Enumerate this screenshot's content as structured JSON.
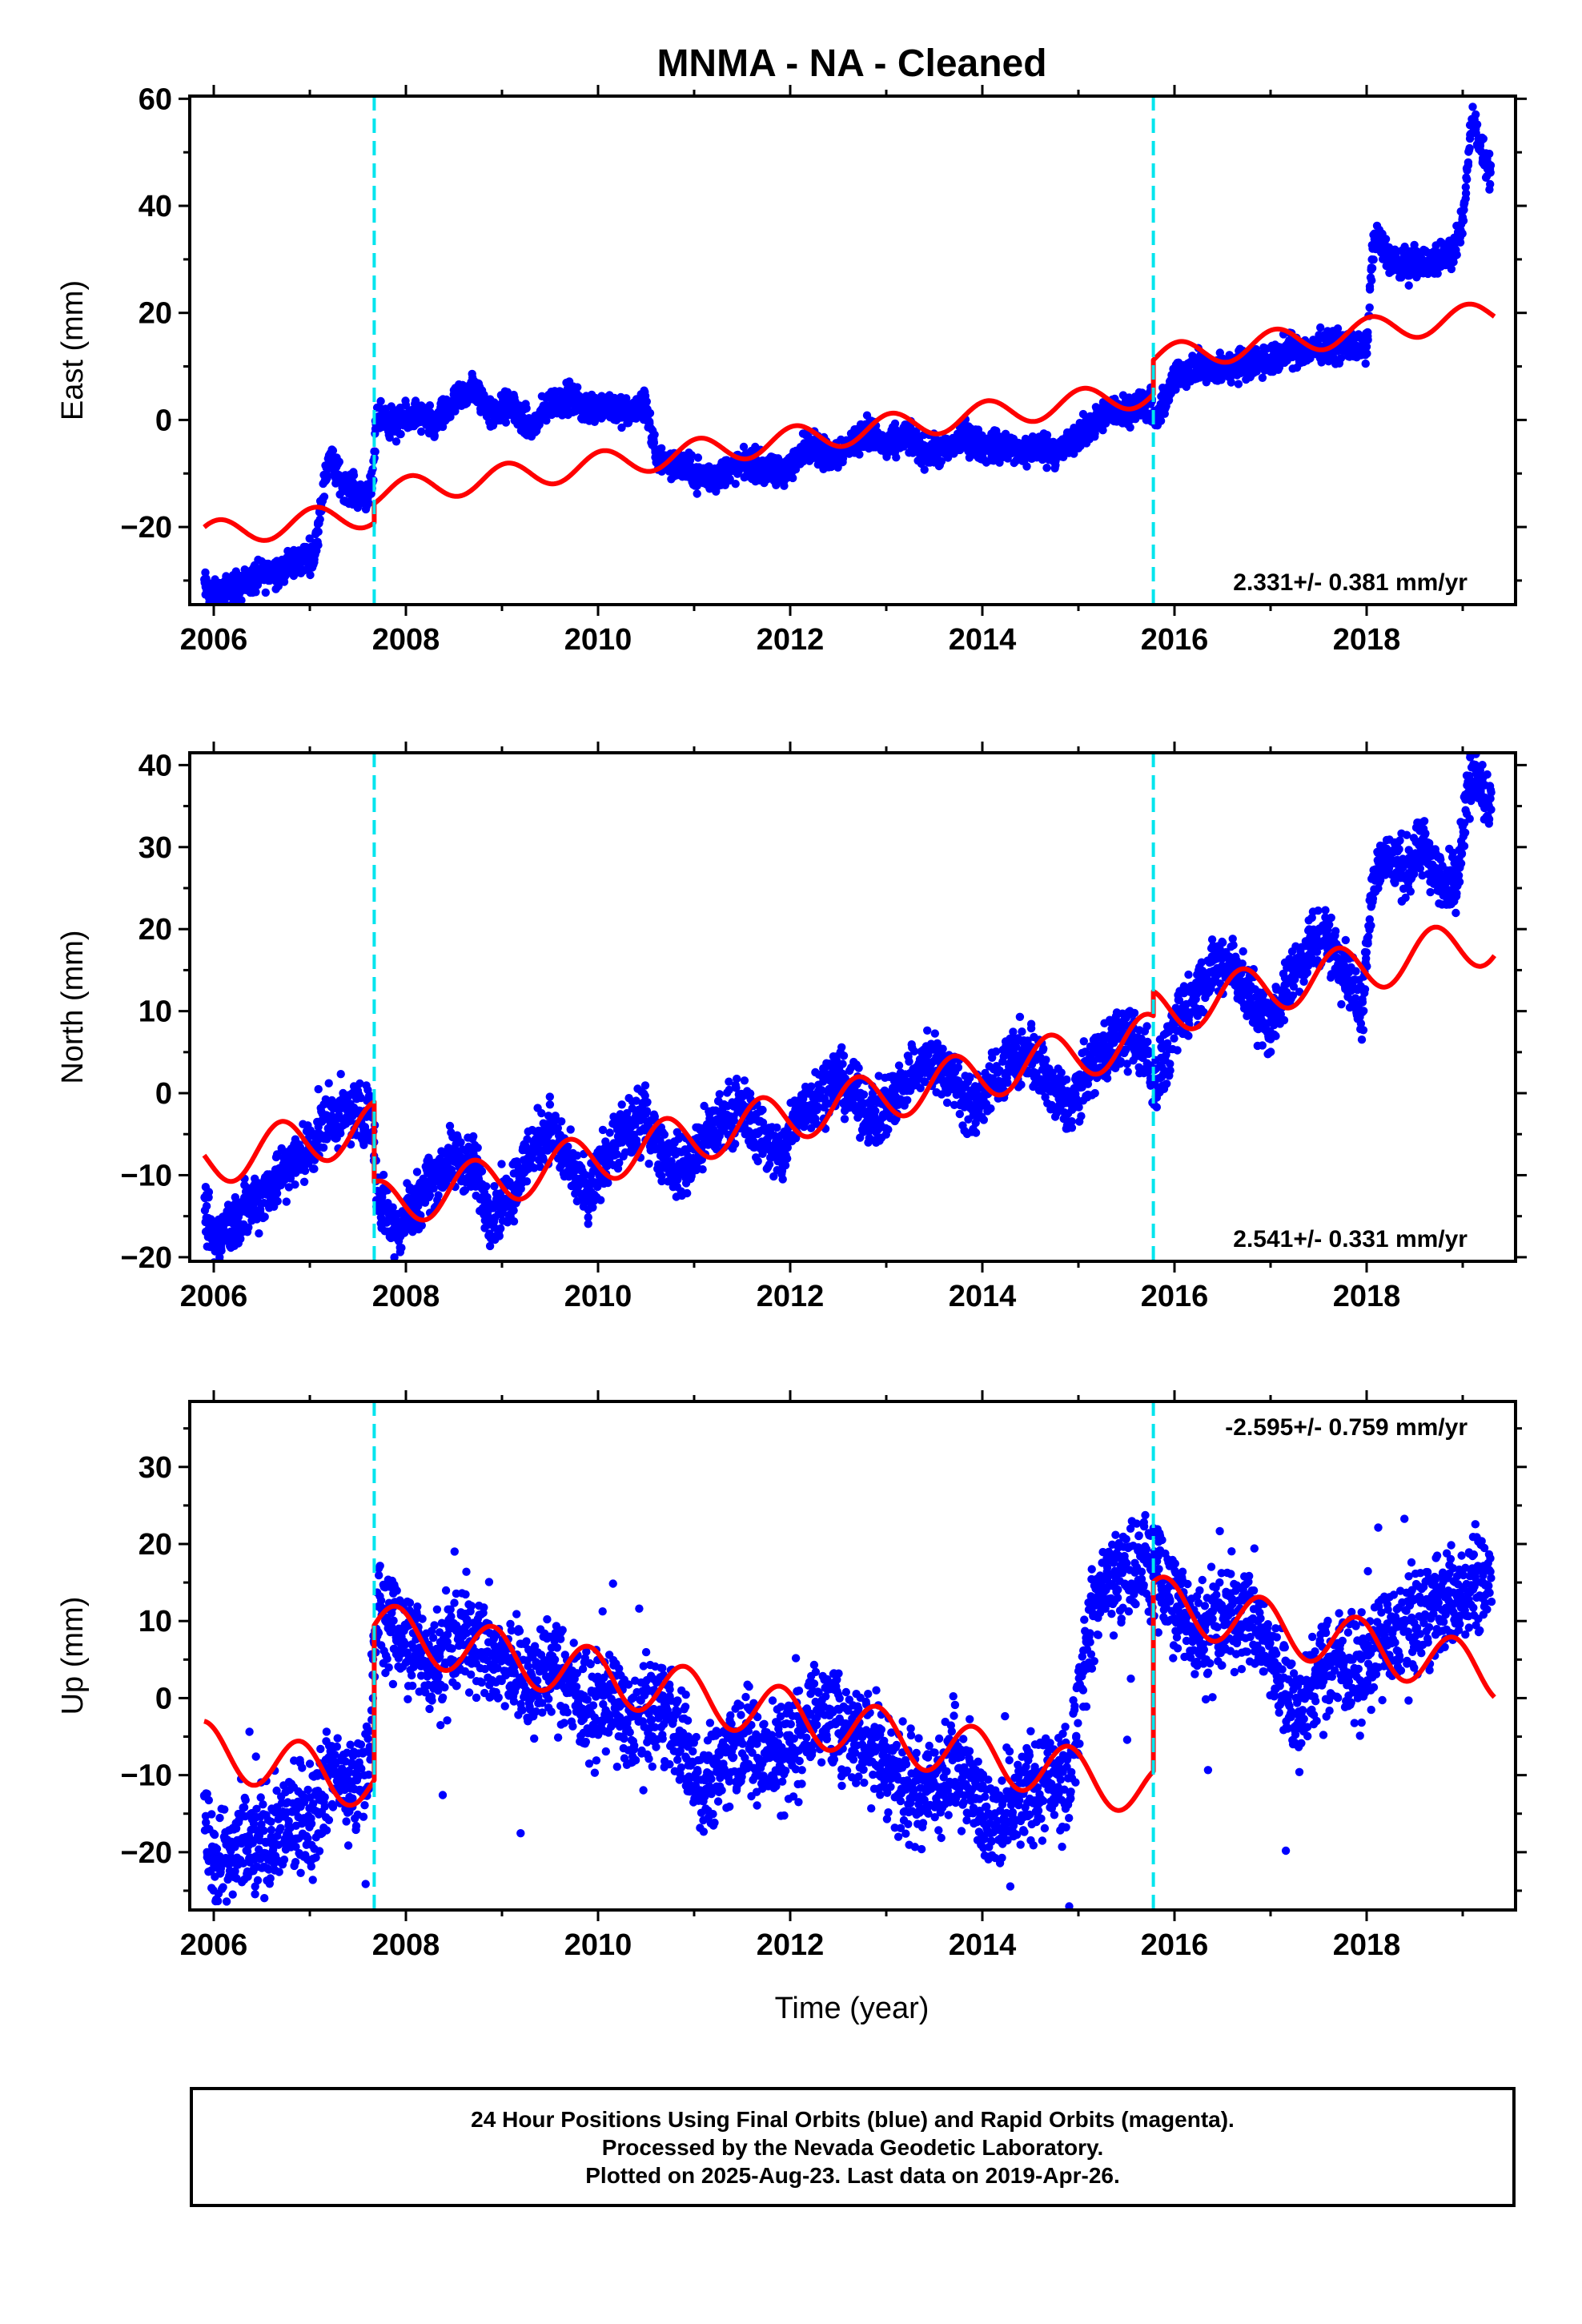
{
  "title": "MNMA  - NA - Cleaned",
  "xlabel": "Time (year)",
  "caption": [
    "24 Hour Positions Using Final Orbits (blue) and Rapid Orbits (magenta).",
    "Processed by the Nevada Geodetic Laboratory.",
    "Plotted on 2025-Aug-23. Last data on 2019-Apr-26."
  ],
  "colors": {
    "data": "#0000ff",
    "model": "#ff0000",
    "breaks": "#00e5ee",
    "axis": "#000000"
  },
  "chart_data": [
    {
      "type": "scatter",
      "ylabel": "East (mm)",
      "annotation": "2.331+/- 0.381 mm/yr",
      "annotation_position": "bottom-right",
      "xlim": [
        2005.75,
        2019.55
      ],
      "ylim": [
        -34.5,
        60.5
      ],
      "xticks": [
        2006,
        2008,
        2010,
        2012,
        2014,
        2016,
        2018
      ],
      "yticks": [
        -20,
        0,
        20,
        40,
        60
      ],
      "breaks": [
        2007.67,
        2015.78
      ],
      "data_trace": [
        [
          2005.9,
          -31
        ],
        [
          2006.0,
          -33
        ],
        [
          2007.05,
          -25
        ],
        [
          2007.12,
          -15
        ],
        [
          2007.2,
          -7
        ],
        [
          2007.35,
          -12
        ],
        [
          2007.55,
          -14
        ],
        [
          2007.65,
          -13
        ],
        [
          2007.7,
          1
        ],
        [
          2007.9,
          -1
        ],
        [
          2008.1,
          1
        ],
        [
          2008.3,
          -1
        ],
        [
          2008.5,
          3
        ],
        [
          2008.7,
          6
        ],
        [
          2008.9,
          1
        ],
        [
          2009.1,
          3
        ],
        [
          2009.3,
          -2
        ],
        [
          2009.5,
          3
        ],
        [
          2009.7,
          4
        ],
        [
          2009.9,
          2
        ],
        [
          2010.1,
          3
        ],
        [
          2010.3,
          1
        ],
        [
          2010.5,
          3
        ],
        [
          2010.6,
          -7
        ],
        [
          2010.8,
          -8
        ],
        [
          2011.0,
          -10
        ],
        [
          2011.2,
          -11
        ],
        [
          2011.4,
          -9
        ],
        [
          2011.6,
          -8
        ],
        [
          2011.8,
          -10
        ],
        [
          2012.0,
          -9
        ],
        [
          2012.2,
          -4
        ],
        [
          2012.4,
          -7
        ],
        [
          2012.6,
          -5
        ],
        [
          2012.8,
          -2
        ],
        [
          2013.0,
          -5
        ],
        [
          2013.2,
          -3
        ],
        [
          2013.4,
          -6
        ],
        [
          2013.6,
          -6
        ],
        [
          2013.8,
          -3
        ],
        [
          2014.0,
          -5
        ],
        [
          2014.2,
          -5
        ],
        [
          2014.4,
          -6
        ],
        [
          2014.6,
          -5
        ],
        [
          2014.8,
          -6
        ],
        [
          2015.0,
          -3
        ],
        [
          2015.2,
          0
        ],
        [
          2015.4,
          2
        ],
        [
          2015.6,
          2
        ],
        [
          2015.75,
          3
        ],
        [
          2015.8,
          -1
        ],
        [
          2016.0,
          8
        ],
        [
          2016.2,
          10
        ],
        [
          2016.4,
          9
        ],
        [
          2016.6,
          10
        ],
        [
          2016.8,
          11
        ],
        [
          2017.0,
          11
        ],
        [
          2017.2,
          13
        ],
        [
          2017.4,
          13
        ],
        [
          2017.6,
          14
        ],
        [
          2017.8,
          14
        ],
        [
          2018.0,
          13
        ],
        [
          2018.05,
          30
        ],
        [
          2018.1,
          34
        ],
        [
          2018.3,
          29
        ],
        [
          2018.5,
          29
        ],
        [
          2018.7,
          30
        ],
        [
          2018.9,
          31
        ],
        [
          2019.0,
          37
        ],
        [
          2019.1,
          57
        ],
        [
          2019.2,
          50
        ],
        [
          2019.3,
          45
        ]
      ],
      "model": {
        "segments": [
          {
            "x": [
              2005.9,
              2007.67
            ],
            "y0": -21.5,
            "slope": 2.331,
            "amp": 2.5,
            "phase": 0.2
          },
          {
            "x": [
              2007.67,
              2015.78
            ],
            "y0": -13.8,
            "slope": 2.331,
            "amp": 2.5,
            "phase": 0.2
          },
          {
            "x": [
              2015.78,
              2019.33
            ],
            "y0": 11.5,
            "slope": 2.331,
            "amp": 2.5,
            "phase": 0.2
          }
        ]
      }
    },
    {
      "type": "scatter",
      "ylabel": "North (mm)",
      "annotation": "2.541+/- 0.331 mm/yr",
      "annotation_position": "bottom-right",
      "xlim": [
        2005.75,
        2019.55
      ],
      "ylim": [
        -20.5,
        41.5
      ],
      "xticks": [
        2006,
        2008,
        2010,
        2012,
        2014,
        2016,
        2018
      ],
      "yticks": [
        -20,
        -10,
        0,
        10,
        20,
        30,
        40
      ],
      "breaks": [
        2007.67,
        2015.78
      ],
      "data_trace": [
        [
          2005.9,
          -15
        ],
        [
          2006.0,
          -18
        ],
        [
          2007.05,
          -6
        ],
        [
          2007.15,
          -3
        ],
        [
          2007.3,
          -3
        ],
        [
          2007.5,
          -2
        ],
        [
          2007.65,
          -3
        ],
        [
          2007.7,
          -12
        ],
        [
          2007.9,
          -17
        ],
        [
          2008.1,
          -13
        ],
        [
          2008.3,
          -10
        ],
        [
          2008.5,
          -8
        ],
        [
          2008.7,
          -9
        ],
        [
          2008.9,
          -15
        ],
        [
          2009.1,
          -12
        ],
        [
          2009.3,
          -7
        ],
        [
          2009.5,
          -4
        ],
        [
          2009.7,
          -9
        ],
        [
          2009.9,
          -13
        ],
        [
          2010.1,
          -7
        ],
        [
          2010.3,
          -5
        ],
        [
          2010.5,
          -3
        ],
        [
          2010.7,
          -8
        ],
        [
          2010.9,
          -9
        ],
        [
          2011.1,
          -6
        ],
        [
          2011.3,
          -3
        ],
        [
          2011.5,
          -2
        ],
        [
          2011.7,
          -5
        ],
        [
          2011.9,
          -8
        ],
        [
          2012.1,
          -2
        ],
        [
          2012.3,
          0
        ],
        [
          2012.5,
          2
        ],
        [
          2012.7,
          -1
        ],
        [
          2012.9,
          -3
        ],
        [
          2013.1,
          0
        ],
        [
          2013.3,
          3
        ],
        [
          2013.5,
          4
        ],
        [
          2013.7,
          2
        ],
        [
          2013.9,
          -2
        ],
        [
          2014.1,
          1
        ],
        [
          2014.3,
          4
        ],
        [
          2014.5,
          5
        ],
        [
          2014.7,
          1
        ],
        [
          2014.9,
          -2
        ],
        [
          2015.1,
          3
        ],
        [
          2015.3,
          6
        ],
        [
          2015.5,
          7
        ],
        [
          2015.7,
          5
        ],
        [
          2015.8,
          1
        ],
        [
          2016.0,
          8
        ],
        [
          2016.2,
          12
        ],
        [
          2016.4,
          15
        ],
        [
          2016.6,
          16
        ],
        [
          2016.8,
          11
        ],
        [
          2017.0,
          8
        ],
        [
          2017.2,
          14
        ],
        [
          2017.4,
          18
        ],
        [
          2017.6,
          19
        ],
        [
          2017.8,
          14
        ],
        [
          2017.95,
          10
        ],
        [
          2018.05,
          25
        ],
        [
          2018.2,
          29
        ],
        [
          2018.4,
          27
        ],
        [
          2018.6,
          30
        ],
        [
          2018.8,
          25
        ],
        [
          2018.95,
          27
        ],
        [
          2019.05,
          37
        ],
        [
          2019.15,
          39
        ],
        [
          2019.3,
          35
        ]
      ],
      "model": {
        "segments": [
          {
            "x": [
              2005.9,
              2007.67
            ],
            "y0": -8.5,
            "slope": 2.541,
            "amp": 3.0,
            "phase": 0.55
          },
          {
            "x": [
              2007.67,
              2015.78
            ],
            "y0": -13.8,
            "slope": 2.541,
            "amp": 3.0,
            "phase": 0.55
          },
          {
            "x": [
              2015.78,
              2019.33
            ],
            "y0": 9.8,
            "slope": 2.541,
            "amp": 3.0,
            "phase": 0.55
          }
        ]
      }
    },
    {
      "type": "scatter",
      "ylabel": "Up (mm)",
      "annotation": "-2.595+/- 0.759 mm/yr",
      "annotation_position": "top-right",
      "xlim": [
        2005.75,
        2019.55
      ],
      "ylim": [
        -27.5,
        38.5
      ],
      "xticks": [
        2006,
        2008,
        2010,
        2012,
        2014,
        2016,
        2018
      ],
      "yticks": [
        -20,
        -10,
        0,
        10,
        20,
        30
      ],
      "breaks": [
        2007.67,
        2015.78
      ],
      "data_trace": [
        [
          2005.9,
          -15
        ],
        [
          2006.0,
          -22
        ],
        [
          2007.05,
          -15
        ],
        [
          2007.2,
          -9
        ],
        [
          2007.4,
          -12
        ],
        [
          2007.6,
          -10
        ],
        [
          2007.7,
          12
        ],
        [
          2007.9,
          8
        ],
        [
          2008.1,
          7
        ],
        [
          2008.3,
          4
        ],
        [
          2008.5,
          7
        ],
        [
          2008.7,
          9
        ],
        [
          2008.9,
          5
        ],
        [
          2009.1,
          4
        ],
        [
          2009.3,
          2
        ],
        [
          2009.5,
          4
        ],
        [
          2009.7,
          2
        ],
        [
          2009.9,
          -2
        ],
        [
          2010.1,
          0
        ],
        [
          2010.3,
          -4
        ],
        [
          2010.5,
          -2
        ],
        [
          2010.7,
          -1
        ],
        [
          2010.9,
          -6
        ],
        [
          2011.1,
          -11
        ],
        [
          2011.3,
          -8
        ],
        [
          2011.5,
          -5
        ],
        [
          2011.7,
          -7
        ],
        [
          2011.9,
          -8
        ],
        [
          2012.1,
          -4
        ],
        [
          2012.3,
          -1
        ],
        [
          2012.5,
          -3
        ],
        [
          2012.7,
          -5
        ],
        [
          2012.9,
          -6
        ],
        [
          2013.1,
          -10
        ],
        [
          2013.3,
          -13
        ],
        [
          2013.5,
          -11
        ],
        [
          2013.7,
          -7
        ],
        [
          2013.9,
          -12
        ],
        [
          2014.1,
          -17
        ],
        [
          2014.3,
          -15
        ],
        [
          2014.5,
          -12
        ],
        [
          2014.7,
          -10
        ],
        [
          2014.9,
          -12
        ],
        [
          2015.1,
          10
        ],
        [
          2015.3,
          15
        ],
        [
          2015.5,
          16
        ],
        [
          2015.7,
          18
        ],
        [
          2015.9,
          14
        ],
        [
          2016.1,
          11
        ],
        [
          2016.3,
          8
        ],
        [
          2016.5,
          10
        ],
        [
          2016.7,
          12
        ],
        [
          2016.9,
          9
        ],
        [
          2017.1,
          2
        ],
        [
          2017.3,
          -2
        ],
        [
          2017.5,
          3
        ],
        [
          2017.7,
          5
        ],
        [
          2017.9,
          3
        ],
        [
          2018.1,
          6
        ],
        [
          2018.3,
          8
        ],
        [
          2018.5,
          10
        ],
        [
          2018.7,
          12
        ],
        [
          2018.9,
          13
        ],
        [
          2019.1,
          16
        ],
        [
          2019.3,
          15
        ]
      ],
      "model": {
        "segments": [
          {
            "x": [
              2005.9,
              2007.67
            ],
            "y0": -6.5,
            "slope": -2.595,
            "amp": 3.5,
            "phase": 0.35
          },
          {
            "x": [
              2007.67,
              2015.78
            ],
            "y0": 9.0,
            "slope": -2.595,
            "amp": 3.5,
            "phase": 0.35
          },
          {
            "x": [
              2015.78,
              2019.33
            ],
            "y0": 12.5,
            "slope": -2.595,
            "amp": 3.5,
            "phase": 0.35
          }
        ]
      }
    }
  ]
}
